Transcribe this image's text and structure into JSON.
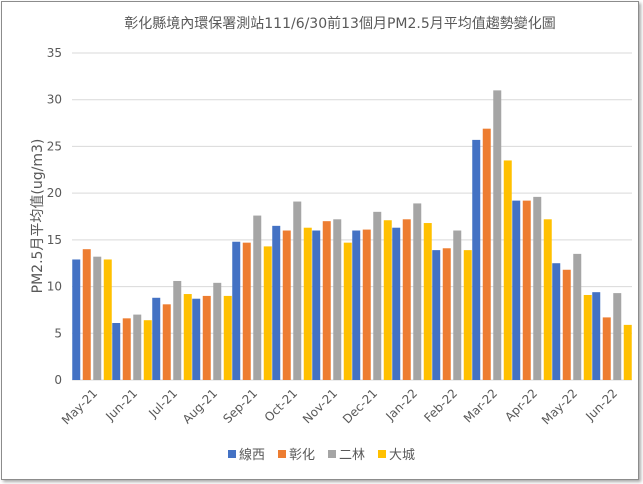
{
  "chart_data": {
    "type": "bar",
    "title": "彰化縣境內環保署測站111/6/30前13個月PM2.5月平均值趨勢變化圖",
    "xlabel": "",
    "ylabel": "PM2.5月平均值(ug/m3)",
    "ylim": [
      0,
      35
    ],
    "yticks": [
      0,
      5,
      10,
      15,
      20,
      25,
      30,
      35
    ],
    "grid": true,
    "legend_position": "bottom",
    "categories": [
      "May-21",
      "Jun-21",
      "Jul-21",
      "Aug-21",
      "Sep-21",
      "Oct-21",
      "Nov-21",
      "Dec-21",
      "Jan-22",
      "Feb-22",
      "Mar-22",
      "Apr-22",
      "May-22",
      "Jun-22"
    ],
    "series": [
      {
        "name": "線西",
        "color": "#4472C4",
        "values": [
          12.9,
          6.1,
          8.8,
          8.7,
          14.8,
          16.5,
          16.0,
          16.0,
          16.3,
          13.9,
          25.7,
          19.2,
          12.5,
          9.4
        ]
      },
      {
        "name": "彰化",
        "color": "#ED7D31",
        "values": [
          14.0,
          6.6,
          8.1,
          9.0,
          14.7,
          16.0,
          17.0,
          16.1,
          17.2,
          14.1,
          26.9,
          19.2,
          11.8,
          6.7
        ]
      },
      {
        "name": "二林",
        "color": "#A5A5A5",
        "values": [
          13.2,
          7.0,
          10.6,
          10.4,
          17.6,
          19.1,
          17.2,
          18.0,
          18.9,
          16.0,
          31.0,
          19.6,
          13.5,
          9.3
        ]
      },
      {
        "name": "大城",
        "color": "#FFC000",
        "values": [
          12.9,
          6.4,
          9.2,
          9.0,
          14.3,
          16.3,
          14.7,
          17.1,
          16.8,
          13.9,
          23.5,
          17.2,
          9.1,
          5.9
        ]
      }
    ]
  }
}
